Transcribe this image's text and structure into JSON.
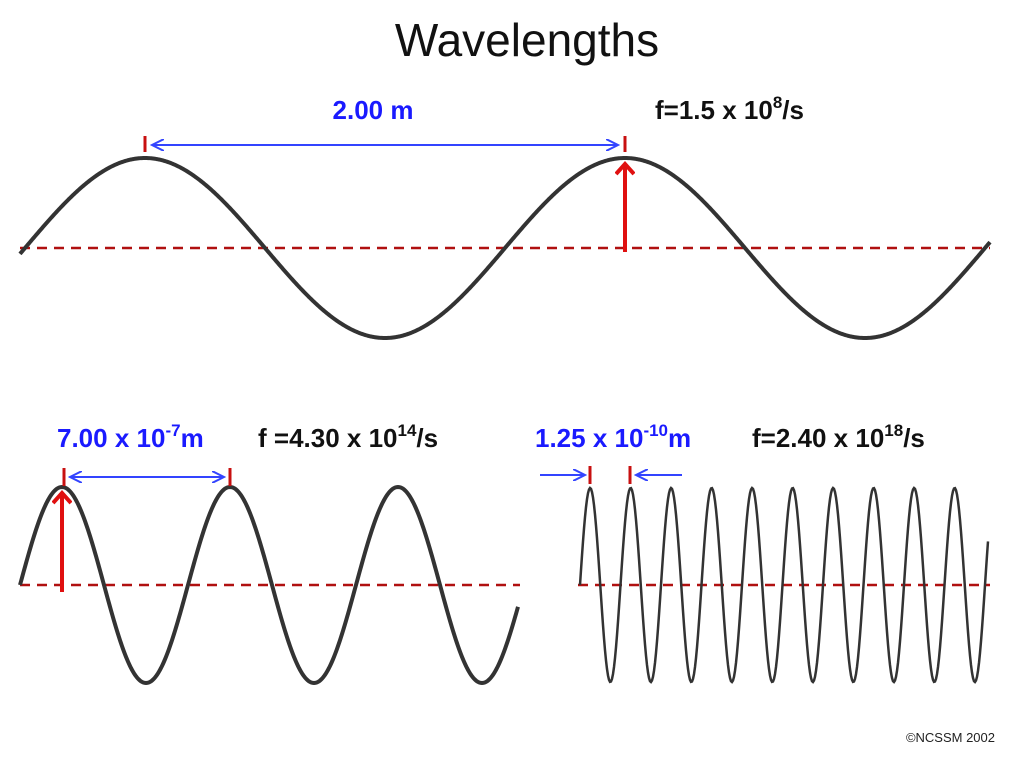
{
  "title": "Wavelengths",
  "panels": [
    {
      "wavelength": {
        "text": "2.00 m"
      },
      "frequency": {
        "base": "f=1.5 x 10",
        "exponent": "8",
        "unit": "/s"
      }
    },
    {
      "wavelength": {
        "base": "7.00 x 10",
        "exponent": "-7",
        "unit": "m"
      },
      "frequency": {
        "base": "f =4.30 x 10",
        "exponent": "14",
        "unit": "/s"
      }
    },
    {
      "wavelength": {
        "base": "1.25 x 10",
        "exponent": "-10",
        "unit": "m"
      },
      "frequency": {
        "base": "f=2.40 x 10",
        "exponent": "18",
        "unit": "/s"
      }
    }
  ],
  "footer": "©NCSSM 2002"
}
